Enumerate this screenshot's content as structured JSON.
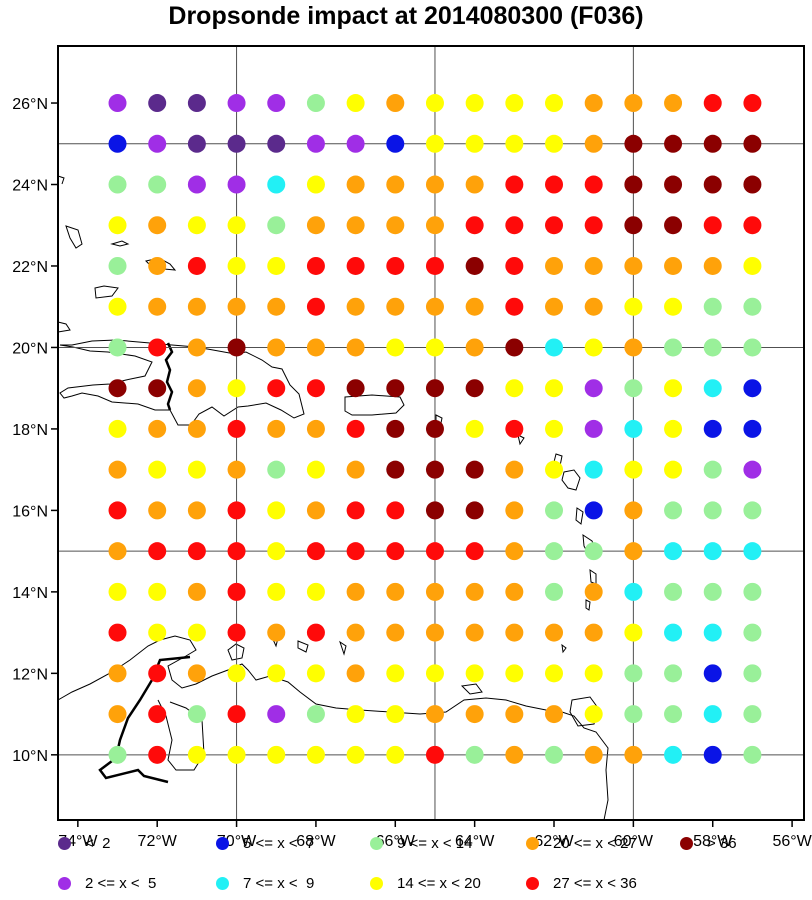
{
  "title": "Dropsonde impact at 2014080300 (F036)",
  "chart_data": {
    "type": "scatter",
    "projection": "lat-lon",
    "x_range_deg_east": [
      -74.5,
      -55.7
    ],
    "y_range_deg_north": [
      8.4,
      27.4
    ],
    "grid_lines": {
      "lon": [
        -70,
        -65,
        -60
      ],
      "lat": [
        10,
        15,
        20,
        25
      ]
    },
    "x_ticks": [
      {
        "value": -74,
        "label": "74°W"
      },
      {
        "value": -72,
        "label": "72°W"
      },
      {
        "value": -70,
        "label": "70°W"
      },
      {
        "value": -68,
        "label": "68°W"
      },
      {
        "value": -66,
        "label": "66°W"
      },
      {
        "value": -64,
        "label": "64°W"
      },
      {
        "value": -62,
        "label": "62°W"
      },
      {
        "value": -60,
        "label": "60°W"
      },
      {
        "value": -58,
        "label": "58°W"
      },
      {
        "value": -56,
        "label": "56°W"
      }
    ],
    "y_ticks": [
      {
        "value": 10,
        "label": "10°N"
      },
      {
        "value": 12,
        "label": "12°N"
      },
      {
        "value": 14,
        "label": "14°N"
      },
      {
        "value": 16,
        "label": "16°N"
      },
      {
        "value": 18,
        "label": "18°N"
      },
      {
        "value": 20,
        "label": "20°N"
      },
      {
        "value": 22,
        "label": "22°N"
      },
      {
        "value": 24,
        "label": "24°N"
      },
      {
        "value": 26,
        "label": "26°N"
      }
    ],
    "point_lons": [
      -73,
      -72,
      -71,
      -70,
      -69,
      -68,
      -67,
      -66,
      -65,
      -64,
      -63,
      -62,
      -61,
      -60,
      -59,
      -58,
      -57
    ],
    "point_lats": [
      26,
      25,
      24,
      23,
      22,
      21,
      20,
      19,
      18,
      17,
      16,
      15,
      14,
      13,
      12,
      11,
      10
    ],
    "categories": [
      {
        "key": "a",
        "label": "<  2",
        "color": "#5b2a8c"
      },
      {
        "key": "b",
        "label": "2 <= x <  5",
        "color": "#a02ee6"
      },
      {
        "key": "c",
        "label": "5 <= x <  7",
        "color": "#0a14e6"
      },
      {
        "key": "d",
        "label": "7 <= x <  9",
        "color": "#22f0f5"
      },
      {
        "key": "e",
        "label": "9 <= x < 14",
        "color": "#99f099"
      },
      {
        "key": "f",
        "label": "14 <= x < 20",
        "color": "#ffff00"
      },
      {
        "key": "g",
        "label": "20 <= x < 27",
        "color": "#ffa20a"
      },
      {
        "key": "h",
        "label": "27 <= x < 36",
        "color": "#ff0a0a"
      },
      {
        "key": "i",
        "label": "> 36",
        "color": "#8b0000"
      }
    ],
    "values": [
      "baabbefgffffggghh",
      "cbaaabbcffffgiiii",
      "eebbdfgggghhhiiii",
      "fgffegggghhhhiihh",
      "eghffhhhhihgggggf",
      "fgggghgggghggffee",
      "ehgigggffgidfgeee",
      "iigfhhiiiiffbefdc",
      "fgghgghiifhfbdfcc",
      "gffgefgiiigfdffeb",
      "hgghfghhiigecgeee",
      "ghhhfhhhhhgeegddd",
      "ffghffgggggegdeee",
      "hffhghgggggggfdde",
      "ghgfffgffffffeece",
      "ghehbeffggggfeede",
      "ehffffffhegeggdce"
    ],
    "legend_order": [
      "a",
      "c",
      "e",
      "g",
      "i",
      "b",
      "d",
      "f",
      "h"
    ],
    "legend_placement": "bottom"
  }
}
